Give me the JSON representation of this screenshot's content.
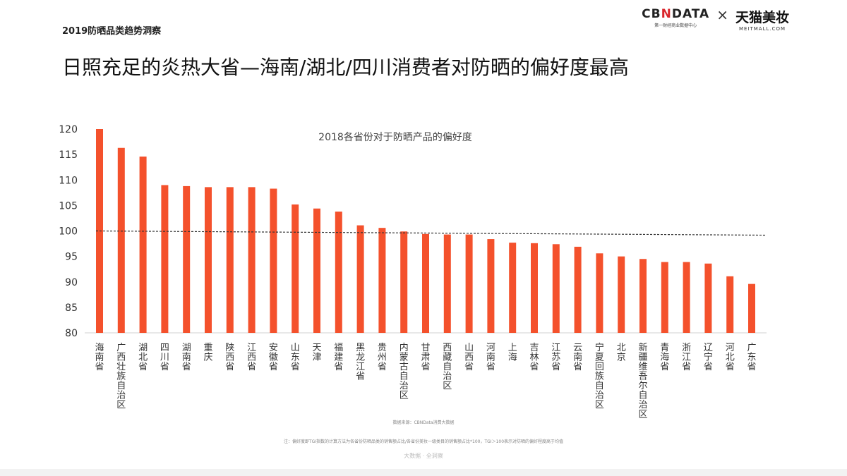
{
  "header": {
    "report_title": "2019防晒品类趋势洞察",
    "brand_a_prefix": "CB",
    "brand_a_accent": "N",
    "brand_a_suffix": "DATA",
    "brand_a_sub": "第一财经商业数据中心",
    "times_sign": "×",
    "brand_b": "天猫美妆",
    "brand_b_sub": "MEITMALL.COM"
  },
  "headline": "日照充足的炎热大省—海南/湖北/四川消费者对防晒的偏好度最高",
  "chart_data": {
    "type": "bar",
    "title": "2018各省份对于防晒产品的偏好度",
    "categories": [
      "海南省",
      "广西壮族自治区",
      "湖北省",
      "四川省",
      "湖南省",
      "重庆",
      "陕西省",
      "江西省",
      "安徽省",
      "山东省",
      "天津",
      "福建省",
      "黑龙江省",
      "贵州省",
      "内蒙古自治区",
      "甘肃省",
      "西藏自治区",
      "山西省",
      "河南省",
      "上海",
      "吉林省",
      "江苏省",
      "云南省",
      "宁夏回族自治区",
      "北京",
      "新疆维吾尔自治区",
      "青海省",
      "浙江省",
      "辽宁省",
      "河北省",
      "广东省"
    ],
    "values": [
      120,
      116.3,
      114.6,
      109,
      108.8,
      108.6,
      108.6,
      108.6,
      108.3,
      105.2,
      104.4,
      103.8,
      101.1,
      100.6,
      99.9,
      99.4,
      99.3,
      99.3,
      98.4,
      97.7,
      97.6,
      97.4,
      96.9,
      95.6,
      95.0,
      94.5,
      93.9,
      93.9,
      93.6,
      91.1,
      89.6
    ],
    "ylim": [
      80,
      120
    ],
    "yticks": [
      80,
      85,
      90,
      95,
      100,
      105,
      110,
      115,
      120
    ],
    "reference_line": {
      "value": 100,
      "style": "dashed"
    },
    "bar_color": "#f4512c",
    "grid": false,
    "xlabel": "",
    "ylabel": ""
  },
  "source": "数据来源：CBNData消费大数据",
  "note": "注：偏好度即TGI指数的计算方法为各省份防晒品类的销售额占比/各省份美妆一级类目的销售额占比*100，TGI＞100表示对防晒的偏好程度高于均值",
  "footer": "大数据 · 全洞察"
}
